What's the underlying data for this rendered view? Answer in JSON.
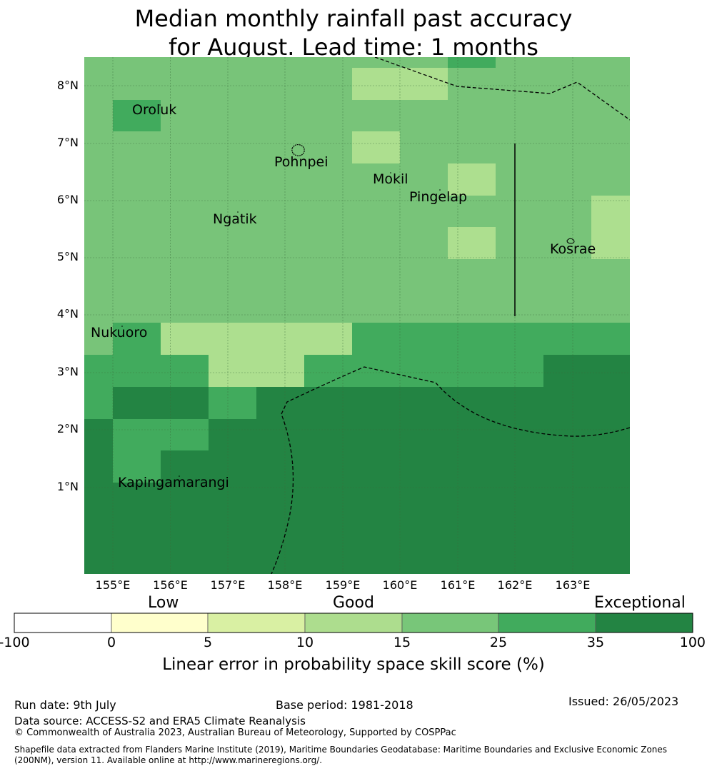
{
  "title_line1": "Median monthly rainfall past accuracy",
  "title_line2": "for August. Lead time: 1 months",
  "map": {
    "lat_labels": [
      "8°N",
      "7°N",
      "6°N",
      "5°N",
      "4°N",
      "3°N",
      "2°N",
      "1°N"
    ],
    "lon_labels": [
      "155°E",
      "156°E",
      "157°E",
      "158°E",
      "159°E",
      "160°E",
      "161°E",
      "162°E",
      "163°E"
    ],
    "places": [
      "Oroluk",
      "Pohnpei",
      "Mokil",
      "Pingelap",
      "Ngatik",
      "Kosrae",
      "Nukuoro",
      "Kapingamarangi"
    ],
    "skill_classes": {
      "c15_25": "#78c479",
      "c10_15": "#addf8f",
      "c25_35": "#41ab5d",
      "c35_100": "#238443"
    }
  },
  "colorbar": {
    "categories": [
      "Low",
      "Good",
      "Exceptional"
    ],
    "ticks": [
      "-100",
      "0",
      "5",
      "10",
      "15",
      "25",
      "35",
      "100"
    ],
    "colors": [
      "#ffffff",
      "#ffffcc",
      "#d9f0a3",
      "#addd8e",
      "#78c679",
      "#41ab5d",
      "#238443"
    ],
    "title": "Linear error in probability space skill score (%)"
  },
  "footer": {
    "run_date": "Run date: 9th July",
    "base_period": "Base period: 1981-2018",
    "issued": "Issued: 26/05/2023",
    "data_source": "Data source: ACCESS-S2 and ERA5 Climate Reanalysis",
    "copyright": "© Commonwealth of Australia 2023, Australian Bureau of Meteorology, Supported by COSPPac",
    "shapefile": "Shapefile data extracted from Flanders Marine Institute (2019), Maritime Boundaries Geodatabase: Maritime Boundaries and Exclusive Economic Zones (200NM), version 11. Available online at http://www.marineregions.org/."
  }
}
